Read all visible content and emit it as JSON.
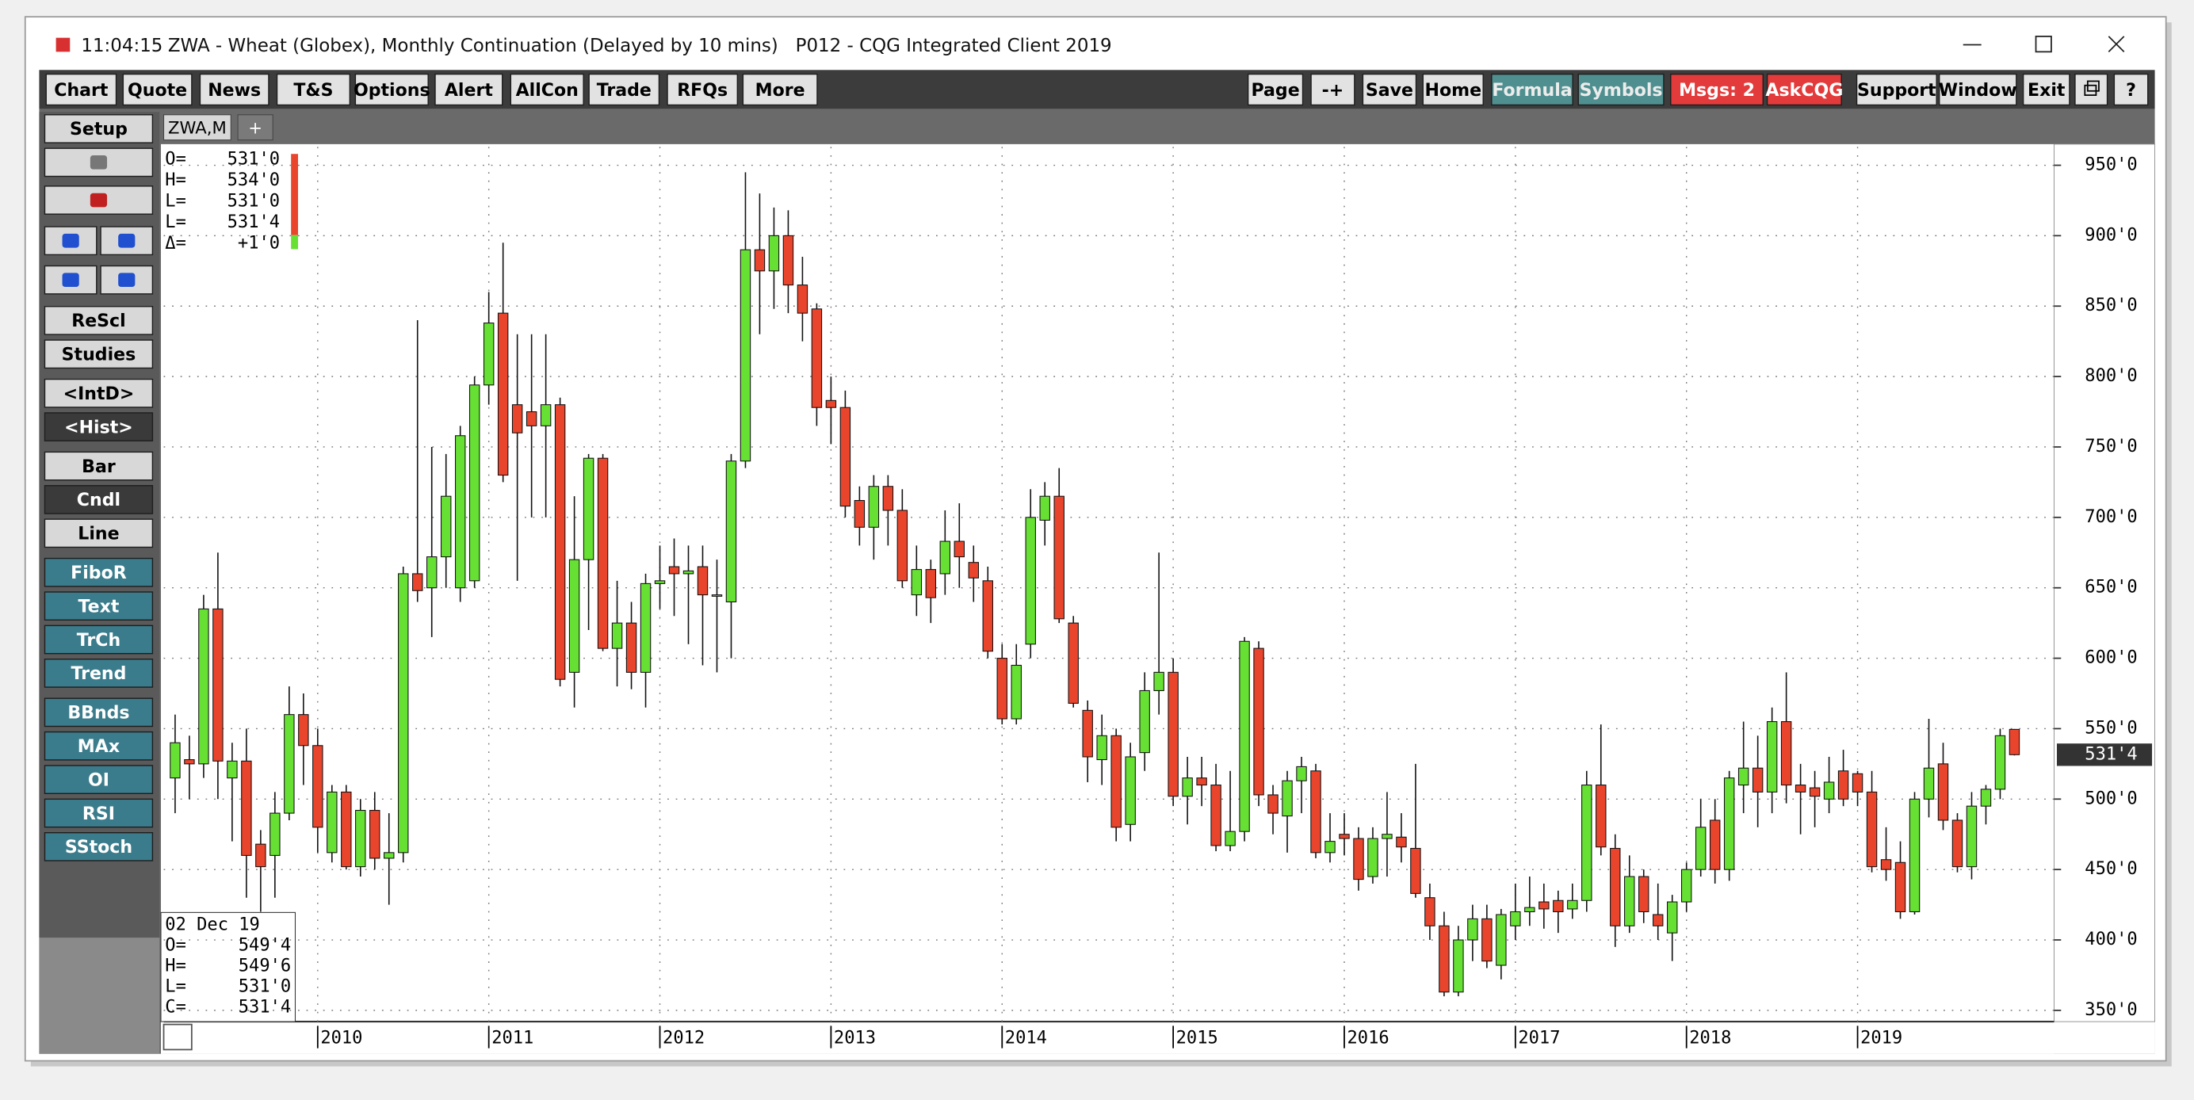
{
  "window": {
    "time": "11:04:15",
    "title": "ZWA - Wheat (Globex), Monthly Continuation (Delayed by 10 mins)   P012 - CQG Integrated Client 2019"
  },
  "toolbar_left": [
    "Chart",
    "Quote",
    "News",
    "T&S",
    "Options",
    "Alert",
    "AllCon",
    "Trade",
    "RFQs",
    "More"
  ],
  "toolbar_right": [
    "Page",
    "-+",
    "Save",
    "Home",
    "Formula",
    "Symbols",
    "Msgs: 2",
    "AskCQG",
    "Support",
    "Window",
    "Exit",
    "?"
  ],
  "sidebar": [
    "Setup",
    "ReScl",
    "Studies",
    "<IntD>",
    "<Hist>",
    "Bar",
    "Cndl",
    "Line",
    "FiboR",
    "Text",
    "TrCh",
    "Trend",
    "BBnds",
    "MAx",
    "OI",
    "RSI",
    "SStoch"
  ],
  "tabs": [
    "ZWA,M",
    "+"
  ],
  "cursor_box": [
    [
      "O=",
      "531'0"
    ],
    [
      "H=",
      "534'0"
    ],
    [
      "L=",
      "531'0"
    ],
    [
      "L=",
      "531'4"
    ],
    [
      "Δ=",
      "+1'0"
    ]
  ],
  "date_box": {
    "date": "02 Dec 19",
    "lines": [
      [
        "O=",
        "549'4"
      ],
      [
        "H=",
        "549'6"
      ],
      [
        "L=",
        "531'0"
      ],
      [
        "C=",
        "531'4"
      ]
    ]
  },
  "chart_data": {
    "type": "candlestick",
    "categories": [
      null,
      null,
      null,
      null,
      null,
      null,
      null,
      null,
      null,
      null,
      "2010",
      null,
      null,
      null,
      null,
      null,
      null,
      null,
      null,
      null,
      null,
      null,
      "2011",
      null,
      null,
      null,
      null,
      null,
      null,
      null,
      null,
      null,
      null,
      null,
      "2012",
      null,
      null,
      null,
      null,
      null,
      null,
      null,
      null,
      null,
      null,
      null,
      "2013",
      null,
      null,
      null,
      null,
      null,
      null,
      null,
      null,
      null,
      null,
      null,
      "2014",
      null,
      null,
      null,
      null,
      null,
      null,
      null,
      null,
      null,
      null,
      null,
      "2015",
      null,
      null,
      null,
      null,
      null,
      null,
      null,
      null,
      null,
      null,
      null,
      "2016",
      null,
      null,
      null,
      null,
      null,
      null,
      null,
      null,
      null,
      null,
      null,
      "2017",
      null,
      null,
      null,
      null,
      null,
      null,
      null,
      null,
      null,
      null,
      null,
      "2018",
      null,
      null,
      null,
      null,
      null,
      null,
      null,
      null,
      null,
      null,
      null,
      "2019",
      null,
      null,
      null,
      null,
      null,
      null,
      null,
      null,
      null,
      null,
      null
    ],
    "open": [
      515,
      528,
      525,
      635,
      515,
      527,
      468,
      460,
      490,
      560,
      538,
      462,
      505,
      452,
      492,
      458,
      462,
      660,
      650,
      672,
      650,
      655,
      794,
      845,
      780,
      775,
      765,
      780,
      590,
      670,
      742,
      607,
      625,
      590,
      653,
      665,
      660,
      665,
      645,
      640,
      740,
      890,
      875,
      900,
      865,
      848,
      783,
      778,
      712,
      693,
      722,
      705,
      645,
      663,
      660,
      683,
      668,
      655,
      600,
      557,
      610,
      698,
      715,
      625,
      563,
      528,
      545,
      482,
      533,
      577,
      590,
      502,
      515,
      510,
      467,
      477,
      607,
      503,
      488,
      513,
      520,
      462,
      475,
      472,
      445,
      472,
      473,
      465,
      430,
      410,
      363,
      400,
      415,
      382,
      410,
      420,
      427,
      428,
      422,
      428,
      510,
      465,
      410,
      445,
      418,
      405,
      427,
      450,
      485,
      450,
      510,
      522,
      505,
      555,
      510,
      508,
      500,
      520,
      518,
      505,
      457,
      455,
      420,
      500,
      525,
      485,
      452,
      495,
      507,
      549.5
    ],
    "high": [
      560,
      545,
      645,
      675,
      540,
      550,
      478,
      505,
      580,
      575,
      550,
      510,
      510,
      500,
      505,
      490,
      665,
      840,
      750,
      745,
      765,
      800,
      860,
      895,
      830,
      830,
      830,
      785,
      715,
      745,
      745,
      655,
      640,
      660,
      680,
      685,
      680,
      680,
      670,
      745,
      945,
      930,
      920,
      918,
      885,
      852,
      800,
      790,
      722,
      730,
      730,
      720,
      680,
      670,
      705,
      710,
      680,
      665,
      610,
      610,
      720,
      725,
      735,
      630,
      570,
      560,
      550,
      540,
      590,
      675,
      600,
      530,
      530,
      525,
      520,
      615,
      612,
      510,
      520,
      530,
      525,
      490,
      490,
      480,
      480,
      505,
      490,
      525,
      440,
      420,
      410,
      425,
      425,
      422,
      440,
      445,
      440,
      435,
      440,
      520,
      553,
      475,
      460,
      450,
      440,
      432,
      455,
      500,
      500,
      520,
      555,
      545,
      565,
      590,
      525,
      520,
      530,
      535,
      520,
      520,
      480,
      470,
      505,
      557,
      540,
      490,
      505,
      510,
      550,
      549.75
    ],
    "low": [
      490,
      500,
      515,
      500,
      470,
      430,
      420,
      430,
      485,
      510,
      462,
      455,
      450,
      445,
      450,
      425,
      455,
      640,
      615,
      650,
      640,
      650,
      780,
      725,
      655,
      700,
      700,
      580,
      565,
      620,
      605,
      580,
      578,
      565,
      635,
      630,
      610,
      595,
      590,
      600,
      735,
      830,
      848,
      845,
      825,
      765,
      752,
      700,
      680,
      670,
      680,
      650,
      630,
      625,
      645,
      650,
      640,
      600,
      553,
      553,
      600,
      680,
      625,
      565,
      512,
      510,
      470,
      470,
      520,
      560,
      495,
      482,
      495,
      463,
      463,
      470,
      495,
      475,
      462,
      490,
      458,
      455,
      460,
      435,
      440,
      445,
      455,
      430,
      400,
      360,
      360,
      385,
      380,
      372,
      400,
      410,
      408,
      405,
      415,
      420,
      460,
      395,
      405,
      412,
      400,
      385,
      420,
      445,
      440,
      442,
      490,
      480,
      490,
      497,
      475,
      480,
      490,
      495,
      495,
      448,
      442,
      415,
      418,
      487,
      478,
      448,
      443,
      482,
      500,
      531
    ],
    "close": [
      540,
      525,
      635,
      527,
      527,
      460,
      452,
      490,
      560,
      538,
      480,
      505,
      452,
      492,
      458,
      462,
      660,
      648,
      672,
      715,
      758,
      794,
      838,
      730,
      760,
      765,
      780,
      585,
      670,
      742,
      607,
      625,
      590,
      653,
      655,
      660,
      662,
      645,
      645,
      740,
      890,
      875,
      900,
      865,
      845,
      778,
      778,
      708,
      693,
      722,
      705,
      655,
      663,
      643,
      683,
      672,
      657,
      605,
      557,
      595,
      700,
      715,
      628,
      568,
      530,
      545,
      480,
      530,
      577,
      590,
      502,
      515,
      510,
      467,
      477,
      612,
      503,
      490,
      513,
      523,
      462,
      470,
      472,
      443,
      472,
      475,
      466,
      433,
      410,
      363,
      400,
      415,
      385,
      418,
      420,
      423,
      422,
      420,
      428,
      510,
      466,
      410,
      445,
      420,
      410,
      427,
      450,
      480,
      450,
      515,
      522,
      505,
      555,
      510,
      505,
      502,
      512,
      500,
      505,
      452,
      450,
      420,
      500,
      522,
      485,
      452,
      495,
      507,
      545,
      531.5
    ],
    "up_color": "#66e033",
    "down_color": "#e8452c",
    "ylim": [
      342,
      963
    ],
    "yticks": [
      {
        "value": 350,
        "label": "350'0"
      },
      {
        "value": 400,
        "label": "400'0"
      },
      {
        "value": 450,
        "label": "450'0"
      },
      {
        "value": 500,
        "label": "500'0"
      },
      {
        "value": 550,
        "label": "550'0"
      },
      {
        "value": 600,
        "label": "600'0"
      },
      {
        "value": 650,
        "label": "650'0"
      },
      {
        "value": 700,
        "label": "700'0"
      },
      {
        "value": 750,
        "label": "750'0"
      },
      {
        "value": 800,
        "label": "800'0"
      },
      {
        "value": 850,
        "label": "850'0"
      },
      {
        "value": 900,
        "label": "900'0"
      },
      {
        "value": 950,
        "label": "950'0"
      }
    ],
    "last_price": {
      "value": 531.5,
      "label": "531'4"
    },
    "grid": true
  }
}
